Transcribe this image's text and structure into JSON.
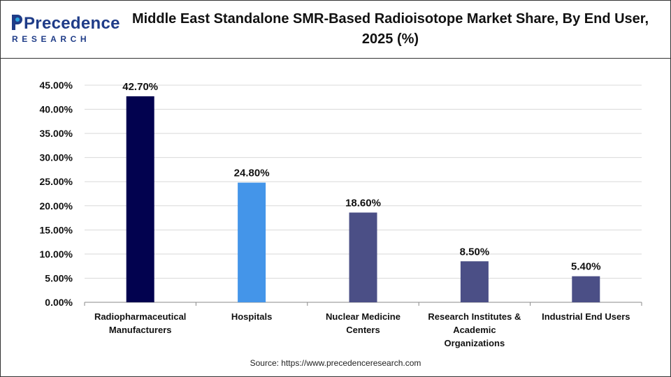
{
  "brand": {
    "name": "Precedence",
    "sub": "RESEARCH",
    "colors": {
      "navy": "#1f3c88",
      "accent": "#2aa4de"
    }
  },
  "chart_data": {
    "type": "bar",
    "title": "Middle East Standalone SMR-Based Radioisotope Market Share, By End User, 2025 (%)",
    "title_lines": [
      "Middle East Standalone SMR-Based Radioisotope Market Share, By End User,",
      "2025 (%)"
    ],
    "categories": [
      [
        "Radiopharmaceutical",
        "Manufacturers"
      ],
      [
        "Hospitals"
      ],
      [
        "Nuclear Medicine",
        "Centers"
      ],
      [
        "Research Institutes &",
        "Academic",
        "Organizations"
      ],
      [
        "Industrial End Users"
      ]
    ],
    "values": [
      42.7,
      24.8,
      18.6,
      8.5,
      5.4
    ],
    "data_labels": [
      "42.70%",
      "24.80%",
      "18.60%",
      "8.50%",
      "5.40%"
    ],
    "colors": [
      "#02024f",
      "#4495e9",
      "#4b4f86",
      "#4b4f86",
      "#4b4f86"
    ],
    "yticks": [
      "0.00%",
      "5.00%",
      "10.00%",
      "15.00%",
      "20.00%",
      "25.00%",
      "30.00%",
      "35.00%",
      "40.00%",
      "45.00%"
    ],
    "ylim": [
      0,
      45
    ],
    "grid": true,
    "xlabel": "",
    "ylabel": ""
  },
  "source": "Source: https://www.precedenceresearch.com"
}
